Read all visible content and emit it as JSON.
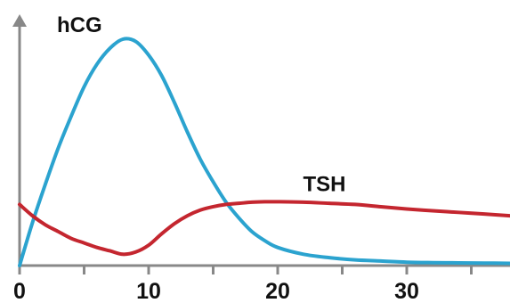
{
  "chart_data": {
    "type": "line",
    "title": "",
    "xlabel": "",
    "ylabel": "",
    "xlim": [
      0,
      38
    ],
    "ylim": [
      0,
      100
    ],
    "x_ticks": [
      0,
      5,
      10,
      15,
      20,
      25,
      30,
      35
    ],
    "x_tick_labels": [
      {
        "value": 0,
        "label": "0"
      },
      {
        "value": 10,
        "label": "10"
      },
      {
        "value": 20,
        "label": "20"
      },
      {
        "value": 30,
        "label": "30"
      }
    ],
    "grid": false,
    "series": [
      {
        "name": "hCG",
        "color": "#2ba3cf",
        "x": [
          0,
          1,
          2,
          3,
          4,
          5,
          6,
          7,
          8,
          9,
          10,
          11,
          12,
          13,
          14,
          15,
          16,
          17,
          18,
          19,
          20,
          22,
          24,
          26,
          28,
          30,
          32,
          34,
          36,
          38
        ],
        "y": [
          0,
          19,
          36,
          52,
          66,
          79,
          89,
          96,
          100,
          99,
          93,
          84,
          72,
          59,
          47,
          37,
          28,
          21,
          15,
          11,
          8,
          5,
          3.5,
          2.5,
          2,
          1.5,
          1.3,
          1.2,
          1.1,
          1
        ]
      },
      {
        "name": "TSH",
        "color": "#c4262f",
        "x": [
          0,
          1,
          2,
          3,
          4,
          5,
          6,
          7,
          8,
          9,
          10,
          11,
          12,
          13,
          14,
          15,
          16,
          17,
          18,
          19,
          20,
          22,
          24,
          26,
          28,
          30,
          32,
          34,
          36,
          38
        ],
        "y": [
          27,
          22,
          18,
          15,
          12,
          10,
          8,
          6.5,
          5,
          6,
          9,
          14,
          18.5,
          22,
          24.5,
          26,
          27,
          27.5,
          28,
          28.2,
          28.2,
          28,
          27.5,
          27,
          26,
          25,
          24.2,
          23.5,
          22.8,
          22
        ]
      }
    ],
    "annotations": [
      {
        "text": "hCG",
        "series": "hCG"
      },
      {
        "text": "TSH",
        "series": "TSH"
      }
    ],
    "colors": {
      "axis": "#888888",
      "arrow": "#888888",
      "text": "#111111"
    }
  }
}
